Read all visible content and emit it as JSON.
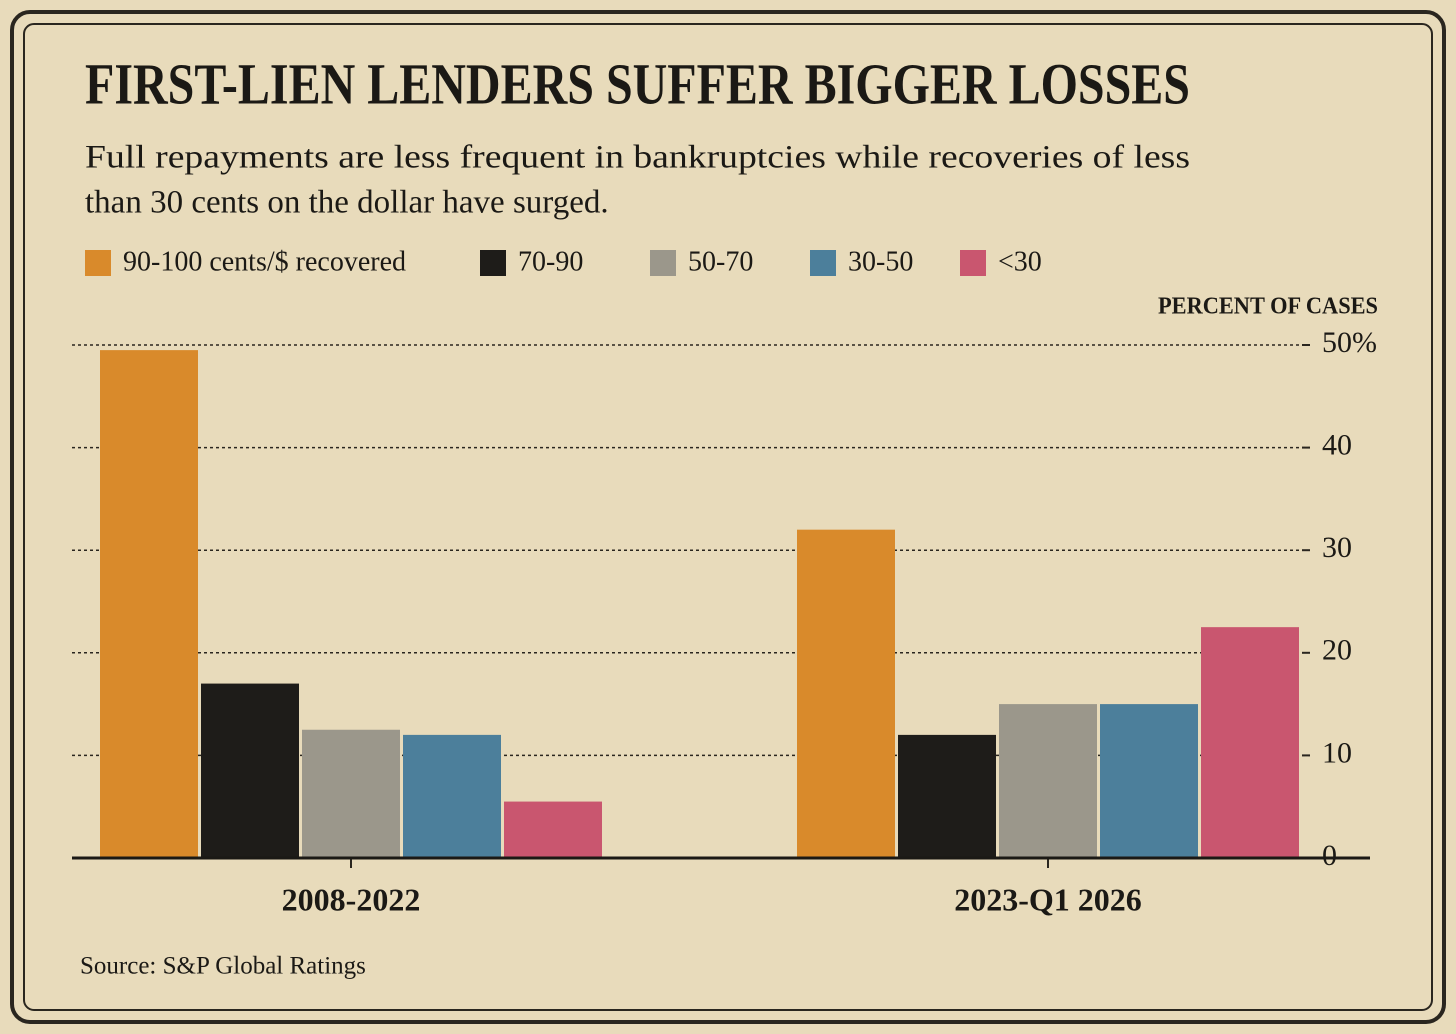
{
  "chart_data": {
    "type": "grouped_bar",
    "title": "FIRST-LIEN LENDERS SUFFER BIGGER LOSSES",
    "subtitle": [
      "Full repayments are less frequent in bankruptcies while recoveries of less",
      "than 30 cents on the dollar have surged."
    ],
    "y_axis_label": "PERCENT OF CASES",
    "source": "Source: S&P Global Ratings",
    "categories": [
      "2008-2022",
      "2023-Q1 2026"
    ],
    "series": [
      {
        "name": "90-100 cents/$ recovered",
        "color": "#d98a2b",
        "values": [
          49.5,
          32
        ]
      },
      {
        "name": "70-90",
        "color": "#1e1c19",
        "values": [
          17,
          12
        ]
      },
      {
        "name": "50-70",
        "color": "#9b978b",
        "values": [
          12.5,
          15
        ]
      },
      {
        "name": "30-50",
        "color": "#4c7f9b",
        "values": [
          12,
          15
        ]
      },
      {
        "name": "<30",
        "color": "#c9566f",
        "values": [
          5.5,
          22.5
        ]
      }
    ],
    "ylim": [
      0,
      50
    ],
    "yticks": [
      0,
      10,
      20,
      30,
      40,
      {
        "value": 50,
        "label": "50%"
      }
    ],
    "grid": true
  }
}
